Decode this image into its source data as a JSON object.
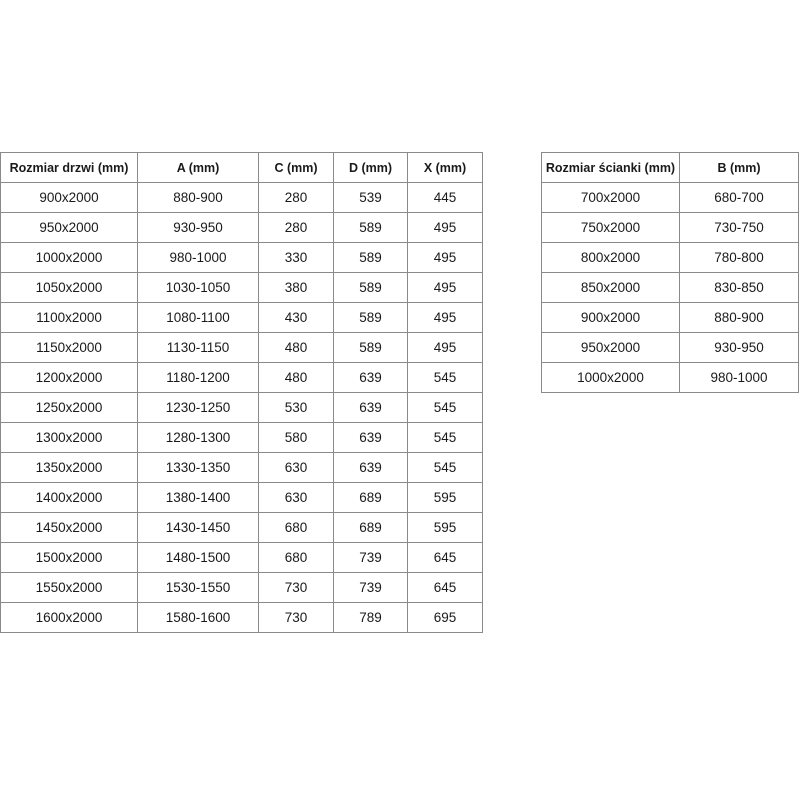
{
  "door_table": {
    "headers": [
      "Rozmiar drzwi (mm)",
      "A (mm)",
      "C (mm)",
      "D (mm)",
      "X (mm)"
    ],
    "rows": [
      [
        "900x2000",
        "880-900",
        "280",
        "539",
        "445"
      ],
      [
        "950x2000",
        "930-950",
        "280",
        "589",
        "495"
      ],
      [
        "1000x2000",
        "980-1000",
        "330",
        "589",
        "495"
      ],
      [
        "1050x2000",
        "1030-1050",
        "380",
        "589",
        "495"
      ],
      [
        "1100x2000",
        "1080-1100",
        "430",
        "589",
        "495"
      ],
      [
        "1150x2000",
        "1130-1150",
        "480",
        "589",
        "495"
      ],
      [
        "1200x2000",
        "1180-1200",
        "480",
        "639",
        "545"
      ],
      [
        "1250x2000",
        "1230-1250",
        "530",
        "639",
        "545"
      ],
      [
        "1300x2000",
        "1280-1300",
        "580",
        "639",
        "545"
      ],
      [
        "1350x2000",
        "1330-1350",
        "630",
        "639",
        "545"
      ],
      [
        "1400x2000",
        "1380-1400",
        "630",
        "689",
        "595"
      ],
      [
        "1450x2000",
        "1430-1450",
        "680",
        "689",
        "595"
      ],
      [
        "1500x2000",
        "1480-1500",
        "680",
        "739",
        "645"
      ],
      [
        "1550x2000",
        "1530-1550",
        "730",
        "739",
        "645"
      ],
      [
        "1600x2000",
        "1580-1600",
        "730",
        "789",
        "695"
      ]
    ]
  },
  "wall_table": {
    "headers": [
      "Rozmiar ścianki (mm)",
      "B (mm)"
    ],
    "rows": [
      [
        "700x2000",
        "680-700"
      ],
      [
        "750x2000",
        "730-750"
      ],
      [
        "800x2000",
        "780-800"
      ],
      [
        "850x2000",
        "830-850"
      ],
      [
        "900x2000",
        "880-900"
      ],
      [
        "950x2000",
        "930-950"
      ],
      [
        "1000x2000",
        "980-1000"
      ]
    ]
  }
}
